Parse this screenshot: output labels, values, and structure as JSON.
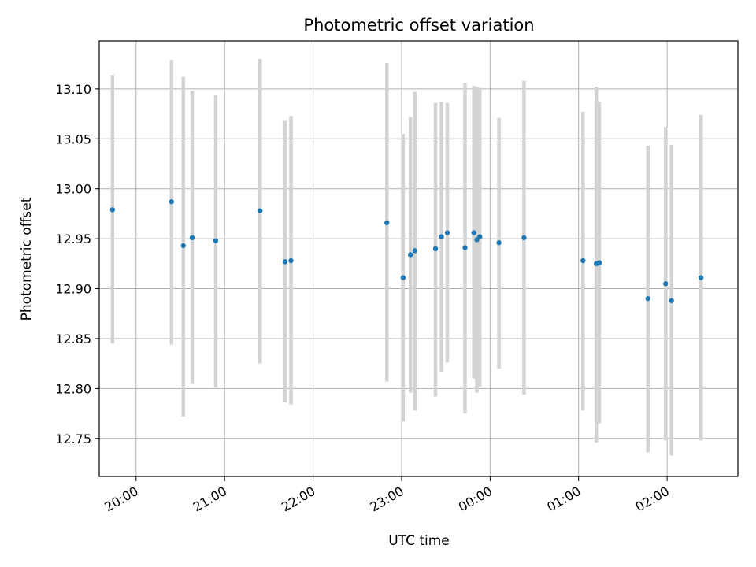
{
  "chart_data": {
    "type": "scatter",
    "title": "Photometric offset variation",
    "xlabel": "UTC time",
    "ylabel": "Photometric offset",
    "grid": true,
    "legend": "none",
    "colors": {
      "points": "#1f77b4",
      "error_bars": "#d3d3d3"
    },
    "xlim": [
      "19:35",
      "02:48"
    ],
    "ylim": [
      12.712,
      13.148
    ],
    "x_ticks": [
      "20:00",
      "21:00",
      "22:00",
      "23:00",
      "00:00",
      "01:00",
      "02:00"
    ],
    "y_ticks": [
      "12.75",
      "12.80",
      "12.85",
      "12.90",
      "12.95",
      "13.00",
      "13.05",
      "13.10"
    ],
    "points": [
      {
        "time": "19:44",
        "y": 12.979,
        "y_low": 12.845,
        "y_high": 13.114
      },
      {
        "time": "20:24",
        "y": 12.987,
        "y_low": 12.844,
        "y_high": 13.129
      },
      {
        "time": "20:32",
        "y": 12.943,
        "y_low": 12.772,
        "y_high": 13.112
      },
      {
        "time": "20:38",
        "y": 12.951,
        "y_low": 12.805,
        "y_high": 13.098
      },
      {
        "time": "20:54",
        "y": 12.948,
        "y_low": 12.801,
        "y_high": 13.094
      },
      {
        "time": "21:24",
        "y": 12.978,
        "y_low": 12.825,
        "y_high": 13.13
      },
      {
        "time": "21:41",
        "y": 12.927,
        "y_low": 12.786,
        "y_high": 13.068
      },
      {
        "time": "21:45",
        "y": 12.928,
        "y_low": 12.784,
        "y_high": 13.073
      },
      {
        "time": "22:50",
        "y": 12.966,
        "y_low": 12.807,
        "y_high": 13.126
      },
      {
        "time": "23:01",
        "y": 12.911,
        "y_low": 12.767,
        "y_high": 13.055
      },
      {
        "time": "23:06",
        "y": 12.934,
        "y_low": 12.796,
        "y_high": 13.072
      },
      {
        "time": "23:09",
        "y": 12.938,
        "y_low": 12.778,
        "y_high": 13.097
      },
      {
        "time": "23:23",
        "y": 12.94,
        "y_low": 12.792,
        "y_high": 13.086
      },
      {
        "time": "23:27",
        "y": 12.952,
        "y_low": 12.817,
        "y_high": 13.087
      },
      {
        "time": "23:31",
        "y": 12.956,
        "y_low": 12.826,
        "y_high": 13.086
      },
      {
        "time": "23:43",
        "y": 12.941,
        "y_low": 12.775,
        "y_high": 13.106
      },
      {
        "time": "23:49",
        "y": 12.956,
        "y_low": 12.81,
        "y_high": 13.103
      },
      {
        "time": "23:51",
        "y": 12.949,
        "y_low": 12.796,
        "y_high": 13.102
      },
      {
        "time": "23:53",
        "y": 12.952,
        "y_low": 12.802,
        "y_high": 13.101
      },
      {
        "time": "00:06",
        "y": 12.946,
        "y_low": 12.82,
        "y_high": 13.071
      },
      {
        "time": "00:23",
        "y": 12.951,
        "y_low": 12.794,
        "y_high": 13.108
      },
      {
        "time": "01:03",
        "y": 12.928,
        "y_low": 12.778,
        "y_high": 13.077
      },
      {
        "time": "01:12",
        "y": 12.925,
        "y_low": 12.746,
        "y_high": 13.102
      },
      {
        "time": "01:14",
        "y": 12.926,
        "y_low": 12.765,
        "y_high": 13.087
      },
      {
        "time": "01:47",
        "y": 12.89,
        "y_low": 12.736,
        "y_high": 13.043
      },
      {
        "time": "01:59",
        "y": 12.905,
        "y_low": 12.748,
        "y_high": 13.062
      },
      {
        "time": "02:03",
        "y": 12.888,
        "y_low": 12.733,
        "y_high": 13.044
      },
      {
        "time": "02:23",
        "y": 12.911,
        "y_low": 12.748,
        "y_high": 13.074
      }
    ]
  }
}
